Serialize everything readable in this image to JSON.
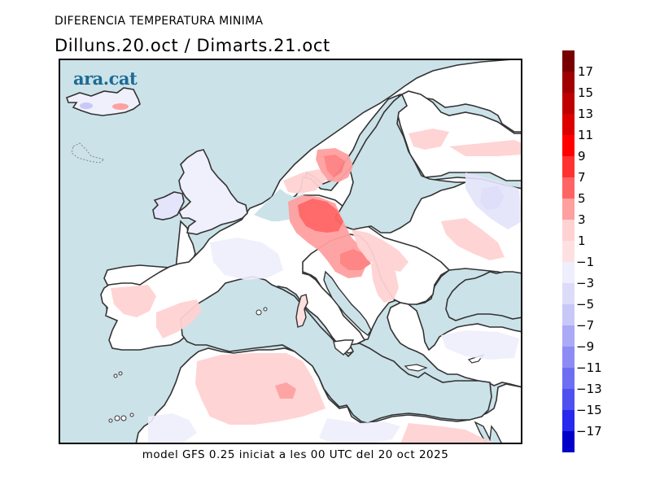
{
  "header": {
    "title": "DIFERENCIA TEMPERATURA MINIMA",
    "subtitle": "Dilluns.20.oct / Dimarts.21.oct"
  },
  "logo": {
    "text": "ara.cat",
    "color": "#1d6a94"
  },
  "footer": {
    "text": "model GFS 0.25 iniciat a les 00 UTC del 20 oct 2025"
  },
  "map": {
    "region": "Europe, North Africa, Mediterranean",
    "variable": "Minimum temperature difference (°C)",
    "colors": {
      "sea": "#cbe2e8",
      "land_neutral": "#ffffff",
      "coast": "#333333"
    },
    "highlights": [
      {
        "area": "Central Europe / Germany / Poland",
        "class": "5 to 7"
      },
      {
        "area": "Southern Sweden",
        "class": "3 to 7"
      },
      {
        "area": "Austria / Hungary",
        "class": "3 to 7"
      },
      {
        "area": "Iberia / North Africa / Balkans",
        "class": "1 to 3"
      },
      {
        "area": "British Isles / France / Eastern Europe",
        "class": "-1 to -3"
      },
      {
        "area": "Ireland",
        "class": "-3 to -5"
      }
    ]
  },
  "legend": {
    "positive": [
      {
        "label": "17",
        "color": "#a00000"
      },
      {
        "label": "15",
        "color": "#be0000"
      },
      {
        "label": "13",
        "color": "#dc0000"
      },
      {
        "label": "11",
        "color": "#ff0000"
      },
      {
        "label": "9",
        "color": "#ff3232"
      },
      {
        "label": "7",
        "color": "#ff6464"
      },
      {
        "label": "5",
        "color": "#ffa0a0"
      },
      {
        "label": "3",
        "color": "#ffd2d2"
      },
      {
        "label": "1",
        "color": "#ffffff"
      }
    ],
    "top_color": "#780000",
    "negative": [
      {
        "label": "−1",
        "color": "#eeeefc"
      },
      {
        "label": "−3",
        "color": "#dcdcfa"
      },
      {
        "label": "−5",
        "color": "#c8c8f8"
      },
      {
        "label": "−7",
        "color": "#aaaaf6"
      },
      {
        "label": "−9",
        "color": "#8c8cf4"
      },
      {
        "label": "−11",
        "color": "#6e6ef2"
      },
      {
        "label": "−13",
        "color": "#5050f0"
      },
      {
        "label": "−15",
        "color": "#2828ee"
      },
      {
        "label": "−17",
        "color": "#0000c8"
      }
    ]
  }
}
